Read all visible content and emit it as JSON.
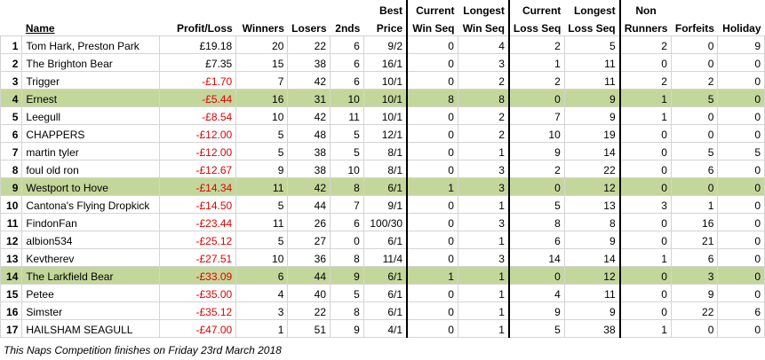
{
  "headers": {
    "rank": "",
    "name": "Name",
    "profit_loss": "Profit/Loss",
    "winners": "Winners",
    "losers": "Losers",
    "seconds": "2nds",
    "best_price_1": "Best",
    "best_price_2": "Price",
    "cur_win_1": "Current",
    "cur_win_2": "Win Seq",
    "long_win_1": "Longest",
    "long_win_2": "Win Seq",
    "cur_loss_1": "Current",
    "cur_loss_2": "Loss Seq",
    "long_loss_1": "Longest",
    "long_loss_2": "Loss Seq",
    "nonrun_1": "Non",
    "nonrun_2": "Runners",
    "forfeits": "Forfeits",
    "holiday": "Holiday"
  },
  "rows": [
    {
      "rank": "1",
      "name": "Tom Hark, Preston Park",
      "pl": "£19.18",
      "neg": false,
      "w": "20",
      "l": "22",
      "s": "6",
      "bp": "9/2",
      "cws": "0",
      "lws": "4",
      "cls": "2",
      "lls": "5",
      "nr": "2",
      "f": "0",
      "h": "9",
      "hl": false
    },
    {
      "rank": "2",
      "name": "The Brighton Bear",
      "pl": "£7.35",
      "neg": false,
      "w": "15",
      "l": "38",
      "s": "6",
      "bp": "16/1",
      "cws": "0",
      "lws": "3",
      "cls": "1",
      "lls": "11",
      "nr": "0",
      "f": "0",
      "h": "0",
      "hl": false
    },
    {
      "rank": "3",
      "name": "Trigger",
      "pl": "-£1.70",
      "neg": true,
      "w": "7",
      "l": "42",
      "s": "6",
      "bp": "10/1",
      "cws": "0",
      "lws": "2",
      "cls": "2",
      "lls": "11",
      "nr": "2",
      "f": "2",
      "h": "0",
      "hl": false
    },
    {
      "rank": "4",
      "name": "Ernest",
      "pl": "-£5.44",
      "neg": true,
      "w": "16",
      "l": "31",
      "s": "10",
      "bp": "10/1",
      "cws": "8",
      "lws": "8",
      "cls": "0",
      "lls": "9",
      "nr": "1",
      "f": "5",
      "h": "0",
      "hl": true
    },
    {
      "rank": "5",
      "name": "Leegull",
      "pl": "-£8.54",
      "neg": true,
      "w": "10",
      "l": "42",
      "s": "11",
      "bp": "10/1",
      "cws": "0",
      "lws": "2",
      "cls": "7",
      "lls": "9",
      "nr": "1",
      "f": "0",
      "h": "0",
      "hl": false
    },
    {
      "rank": "6",
      "name": "CHAPPERS",
      "pl": "-£12.00",
      "neg": true,
      "w": "5",
      "l": "48",
      "s": "5",
      "bp": "12/1",
      "cws": "0",
      "lws": "2",
      "cls": "10",
      "lls": "19",
      "nr": "0",
      "f": "0",
      "h": "0",
      "hl": false
    },
    {
      "rank": "7",
      "name": "martin tyler",
      "pl": "-£12.00",
      "neg": true,
      "w": "5",
      "l": "38",
      "s": "5",
      "bp": "8/1",
      "cws": "0",
      "lws": "1",
      "cls": "9",
      "lls": "14",
      "nr": "0",
      "f": "5",
      "h": "5",
      "hl": false
    },
    {
      "rank": "8",
      "name": "foul old ron",
      "pl": "-£12.67",
      "neg": true,
      "w": "9",
      "l": "38",
      "s": "10",
      "bp": "8/1",
      "cws": "0",
      "lws": "3",
      "cls": "2",
      "lls": "22",
      "nr": "0",
      "f": "6",
      "h": "0",
      "hl": false
    },
    {
      "rank": "9",
      "name": "Westport to Hove",
      "pl": "-£14.34",
      "neg": true,
      "w": "11",
      "l": "42",
      "s": "8",
      "bp": "6/1",
      "cws": "1",
      "lws": "3",
      "cls": "0",
      "lls": "12",
      "nr": "0",
      "f": "0",
      "h": "0",
      "hl": true
    },
    {
      "rank": "10",
      "name": "Cantona's Flying Dropkick",
      "pl": "-£14.50",
      "neg": true,
      "w": "5",
      "l": "44",
      "s": "7",
      "bp": "9/1",
      "cws": "0",
      "lws": "1",
      "cls": "5",
      "lls": "13",
      "nr": "3",
      "f": "1",
      "h": "0",
      "hl": false
    },
    {
      "rank": "11",
      "name": "FindonFan",
      "pl": "-£23.44",
      "neg": true,
      "w": "11",
      "l": "26",
      "s": "6",
      "bp": "100/30",
      "cws": "0",
      "lws": "3",
      "cls": "8",
      "lls": "8",
      "nr": "0",
      "f": "16",
      "h": "0",
      "hl": false
    },
    {
      "rank": "12",
      "name": "albion534",
      "pl": "-£25.12",
      "neg": true,
      "w": "5",
      "l": "27",
      "s": "0",
      "bp": "6/1",
      "cws": "0",
      "lws": "1",
      "cls": "6",
      "lls": "9",
      "nr": "0",
      "f": "21",
      "h": "0",
      "hl": false
    },
    {
      "rank": "13",
      "name": "Kevtherev",
      "pl": "-£27.51",
      "neg": true,
      "w": "10",
      "l": "36",
      "s": "8",
      "bp": "11/4",
      "cws": "0",
      "lws": "3",
      "cls": "14",
      "lls": "14",
      "nr": "1",
      "f": "6",
      "h": "0",
      "hl": false
    },
    {
      "rank": "14",
      "name": "The Larkfield Bear",
      "pl": "-£33.09",
      "neg": true,
      "w": "6",
      "l": "44",
      "s": "9",
      "bp": "6/1",
      "cws": "1",
      "lws": "1",
      "cls": "0",
      "lls": "12",
      "nr": "0",
      "f": "3",
      "h": "0",
      "hl": true
    },
    {
      "rank": "15",
      "name": "Petee",
      "pl": "-£35.00",
      "neg": true,
      "w": "4",
      "l": "40",
      "s": "5",
      "bp": "6/1",
      "cws": "0",
      "lws": "1",
      "cls": "4",
      "lls": "11",
      "nr": "0",
      "f": "9",
      "h": "0",
      "hl": false
    },
    {
      "rank": "16",
      "name": "Simster",
      "pl": "-£35.12",
      "neg": true,
      "w": "3",
      "l": "22",
      "s": "8",
      "bp": "6/1",
      "cws": "0",
      "lws": "1",
      "cls": "9",
      "lls": "9",
      "nr": "0",
      "f": "22",
      "h": "6",
      "hl": false
    },
    {
      "rank": "17",
      "name": "HAILSHAM SEAGULL",
      "pl": "-£47.00",
      "neg": true,
      "w": "1",
      "l": "51",
      "s": "9",
      "bp": "4/1",
      "cws": "0",
      "lws": "1",
      "cls": "5",
      "lls": "38",
      "nr": "1",
      "f": "0",
      "h": "0",
      "hl": false
    }
  ],
  "footer": "This Naps Competition finishes on Friday 23rd March 2018",
  "colors": {
    "highlight": "#c4d79b",
    "negative": "#e00000"
  }
}
